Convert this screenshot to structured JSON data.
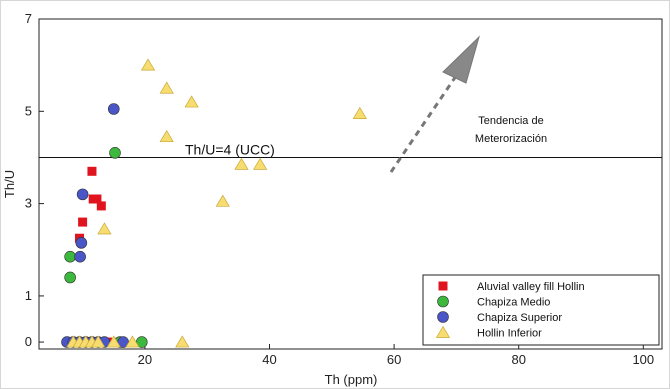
{
  "chart_data": {
    "type": "scatter",
    "xlabel": "Th (ppm)",
    "ylabel": "Th/U",
    "xlim": [
      0,
      100
    ],
    "ylim": [
      0,
      7
    ],
    "xticks": [
      {
        "value": 20,
        "label": "20"
      },
      {
        "value": 40,
        "label": "40"
      },
      {
        "value": 60,
        "label": "60"
      },
      {
        "value": 80,
        "label": "80"
      },
      {
        "value": 100,
        "label": "100"
      }
    ],
    "yticks": [
      {
        "value": 0,
        "label": "0"
      },
      {
        "value": 1,
        "label": "1"
      },
      {
        "value": 3,
        "label": "3"
      },
      {
        "value": 5,
        "label": "5"
      },
      {
        "value": 7,
        "label": "7"
      }
    ],
    "grid": false,
    "legend_position": "bottom-right",
    "reference_line": {
      "y": 4.0,
      "label": "Th/U=4 (UCC)"
    },
    "annotation": {
      "line1": "Tendencia de",
      "line2": "Meterorización"
    },
    "series": [
      {
        "name": "Aluvial valley fill Hollin",
        "marker": "square",
        "color": "#e0141e",
        "points": [
          [
            11.5,
            3.7
          ],
          [
            11.7,
            3.1
          ],
          [
            12.3,
            3.1
          ],
          [
            13,
            2.95
          ],
          [
            10,
            2.6
          ],
          [
            9.5,
            2.25
          ],
          [
            9,
            0
          ],
          [
            10,
            0
          ],
          [
            12,
            0
          ],
          [
            14,
            0
          ],
          [
            16,
            0
          ]
        ]
      },
      {
        "name": "Chapiza Medio",
        "marker": "circle",
        "color": "#3cb93c",
        "points": [
          [
            15.2,
            4.1
          ],
          [
            8,
            1.85
          ],
          [
            8,
            1.4
          ],
          [
            19.5,
            0
          ],
          [
            16,
            0
          ]
        ]
      },
      {
        "name": "Chapiza Superior",
        "marker": "circle",
        "color": "#4a56c8",
        "points": [
          [
            15,
            5.05
          ],
          [
            10,
            3.2
          ],
          [
            9.8,
            2.15
          ],
          [
            9.6,
            1.85
          ],
          [
            7.5,
            0
          ],
          [
            8.5,
            0
          ],
          [
            9.5,
            0
          ],
          [
            10.5,
            0
          ],
          [
            11.5,
            0
          ],
          [
            12.5,
            0
          ],
          [
            13.5,
            0
          ],
          [
            16.5,
            0
          ]
        ]
      },
      {
        "name": "Hollin Inferior",
        "marker": "triangle",
        "color": "#f7dc6f",
        "points": [
          [
            20.5,
            6.0
          ],
          [
            23.5,
            5.5
          ],
          [
            27.5,
            5.2
          ],
          [
            54.5,
            4.95
          ],
          [
            23.5,
            4.45
          ],
          [
            35.5,
            3.85
          ],
          [
            38.5,
            3.85
          ],
          [
            32.5,
            3.05
          ],
          [
            13.5,
            2.45
          ],
          [
            8.5,
            0
          ],
          [
            9.5,
            0
          ],
          [
            10.5,
            0
          ],
          [
            11.5,
            0
          ],
          [
            12.5,
            0
          ],
          [
            15,
            0
          ],
          [
            18,
            0
          ],
          [
            26,
            0
          ]
        ]
      }
    ]
  }
}
